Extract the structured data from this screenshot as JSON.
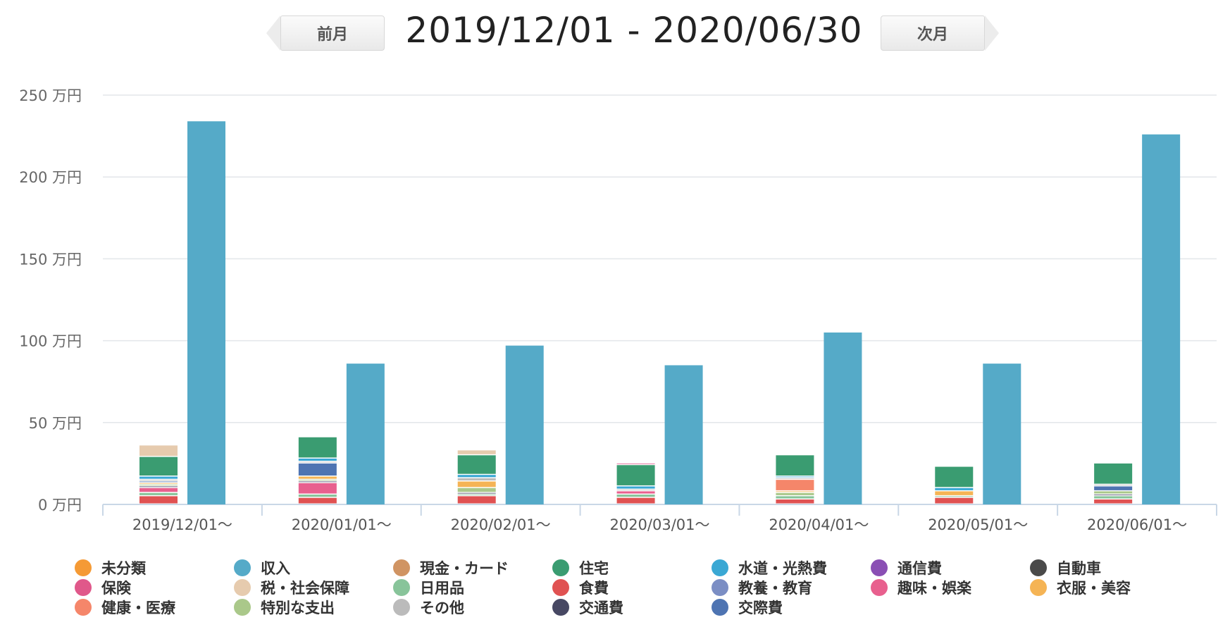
{
  "header": {
    "prev_label": "前月",
    "next_label": "次月",
    "date_range": "2019/12/01 - 2020/06/30"
  },
  "chart_data": {
    "type": "bar",
    "stacked": true,
    "unit": "万円",
    "ylim": [
      0,
      250
    ],
    "yticks": [
      0,
      50,
      100,
      150,
      200,
      250
    ],
    "ytick_labels": [
      "0 万円",
      "50 万円",
      "100 万円",
      "150 万円",
      "200 万円",
      "250 万円"
    ],
    "grid": true,
    "legend_position": "bottom",
    "categories": [
      "2019/12/01〜",
      "2020/01/01〜",
      "2020/02/01〜",
      "2020/03/01〜",
      "2020/04/01〜",
      "2020/05/01〜",
      "2020/06/01〜"
    ],
    "income": {
      "name": "収入",
      "color": "#55aac8",
      "values": [
        234,
        86,
        97,
        85,
        105,
        86,
        226
      ]
    },
    "expense_series": [
      {
        "name": "食費",
        "color": "#e05252",
        "values": [
          5,
          4,
          5,
          4,
          3,
          4,
          3
        ]
      },
      {
        "name": "日用品",
        "color": "#88c49a",
        "values": [
          2,
          2,
          1,
          2,
          2,
          1,
          2
        ]
      },
      {
        "name": "趣味・娯楽",
        "color": "#e8608e",
        "values": [
          3,
          7,
          0,
          2,
          0,
          0,
          0
        ]
      },
      {
        "name": "交通費",
        "color": "#474863",
        "values": [
          1,
          1,
          1,
          0,
          0,
          0,
          1
        ]
      },
      {
        "name": "特別な支出",
        "color": "#aac88a",
        "values": [
          1,
          1,
          3,
          0,
          2,
          0,
          2
        ]
      },
      {
        "name": "衣服・美容",
        "color": "#f5b455",
        "values": [
          1,
          2,
          4,
          0,
          1,
          3,
          0
        ]
      },
      {
        "name": "健康・医療",
        "color": "#f5866a",
        "values": [
          0,
          0,
          0,
          0,
          7,
          0,
          0
        ]
      },
      {
        "name": "交際費",
        "color": "#4e74b2",
        "values": [
          1,
          8,
          0,
          0,
          0,
          0,
          3
        ]
      },
      {
        "name": "その他",
        "color": "#bbbbbb",
        "values": [
          1,
          1,
          2,
          1,
          1,
          0,
          1
        ]
      },
      {
        "name": "水道・光熱費",
        "color": "#3aa8d4",
        "values": [
          2,
          2,
          2,
          2,
          1,
          2,
          0
        ]
      },
      {
        "name": "住宅",
        "color": "#3a9c71",
        "values": [
          12,
          13,
          12,
          13,
          13,
          13,
          13
        ]
      },
      {
        "name": "保険",
        "color": "#e0588a",
        "values": [
          0,
          0,
          0,
          1,
          0,
          0,
          0
        ]
      },
      {
        "name": "税・社会保障",
        "color": "#e6cbae",
        "values": [
          7,
          0,
          3,
          0,
          0,
          0,
          0
        ]
      }
    ]
  },
  "legend": [
    {
      "label": "未分類",
      "color": "#f59a35"
    },
    {
      "label": "収入",
      "color": "#55aac8"
    },
    {
      "label": "現金・カード",
      "color": "#d09463"
    },
    {
      "label": "住宅",
      "color": "#3a9c71"
    },
    {
      "label": "水道・光熱費",
      "color": "#3aa8d4"
    },
    {
      "label": "通信費",
      "color": "#8a4fb4"
    },
    {
      "label": "自動車",
      "color": "#4a4a4a"
    },
    {
      "label": "保険",
      "color": "#e0588a"
    },
    {
      "label": "税・社会保障",
      "color": "#e6cbae"
    },
    {
      "label": "日用品",
      "color": "#88c49a"
    },
    {
      "label": "食費",
      "color": "#e05252"
    },
    {
      "label": "教養・教育",
      "color": "#7b8ec4"
    },
    {
      "label": "趣味・娯楽",
      "color": "#e8608e"
    },
    {
      "label": "衣服・美容",
      "color": "#f5b455"
    },
    {
      "label": "健康・医療",
      "color": "#f5866a"
    },
    {
      "label": "特別な支出",
      "color": "#aac88a"
    },
    {
      "label": "その他",
      "color": "#bbbbbb"
    },
    {
      "label": "交通費",
      "color": "#474863"
    },
    {
      "label": "交際費",
      "color": "#4e74b2"
    }
  ]
}
